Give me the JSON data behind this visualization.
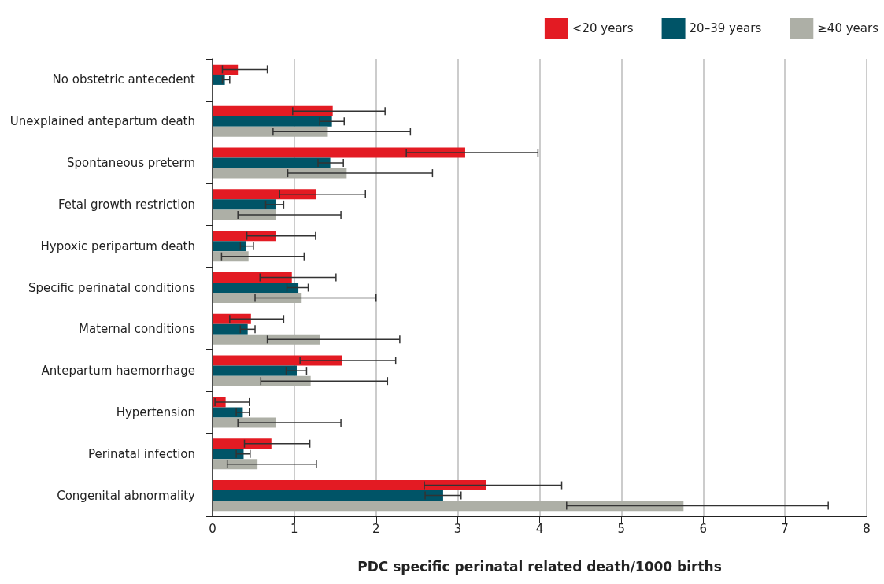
{
  "chart_data": {
    "type": "bar",
    "orientation": "horizontal",
    "xlabel": "PDC specific perinatal related death/1000 births",
    "categories": [
      "No obstetric antecedent",
      "Unexplained antepartum death",
      "Spontaneous preterm",
      "Fetal growth restriction",
      "Hypoxic peripartum death",
      "Specific perinatal conditions",
      "Maternal conditions",
      "Antepartum haemorrhage",
      "Hypertension",
      "Perinatal infection",
      "Congenital abnormality"
    ],
    "series": [
      {
        "name": "<20 years",
        "color": "#e31b23",
        "values": [
          0.31,
          1.47,
          3.09,
          1.27,
          0.77,
          0.97,
          0.47,
          1.58,
          0.16,
          0.72,
          3.35
        ],
        "errors": [
          [
            0.12,
            0.67
          ],
          [
            0.98,
            2.11
          ],
          [
            2.37,
            3.98
          ],
          [
            0.82,
            1.87
          ],
          [
            0.42,
            1.26
          ],
          [
            0.58,
            1.51
          ],
          [
            0.21,
            0.87
          ],
          [
            1.07,
            2.24
          ],
          [
            0.03,
            0.45
          ],
          [
            0.39,
            1.19
          ],
          [
            2.59,
            4.27
          ]
        ]
      },
      {
        "name": "20–39 years",
        "color": "#005467",
        "values": [
          0.15,
          1.46,
          1.44,
          0.77,
          0.41,
          1.05,
          0.43,
          1.03,
          0.37,
          0.38,
          2.82
        ],
        "errors": [
          [
            0.12,
            0.21
          ],
          [
            1.31,
            1.61
          ],
          [
            1.29,
            1.6
          ],
          [
            0.65,
            0.87
          ],
          [
            0.34,
            0.5
          ],
          [
            0.91,
            1.17
          ],
          [
            0.34,
            0.52
          ],
          [
            0.9,
            1.15
          ],
          [
            0.29,
            0.45
          ],
          [
            0.29,
            0.46
          ],
          [
            2.6,
            3.04
          ]
        ]
      },
      {
        "name": "≥40 years",
        "color": "#adafa6",
        "values": [
          0,
          1.41,
          1.64,
          0.77,
          0.44,
          1.09,
          1.31,
          1.2,
          0.77,
          0.55,
          5.76
        ],
        "errors": [
          null,
          [
            0.74,
            2.42
          ],
          [
            0.92,
            2.69
          ],
          [
            0.31,
            1.57
          ],
          [
            0.11,
            1.12
          ],
          [
            0.52,
            2.0
          ],
          [
            0.67,
            2.29
          ],
          [
            0.59,
            2.14
          ],
          [
            0.31,
            1.57
          ],
          [
            0.18,
            1.27
          ],
          [
            4.33,
            7.53
          ]
        ]
      }
    ],
    "xlim": [
      0,
      8
    ],
    "xticks": [
      0,
      1,
      2,
      3,
      4,
      5,
      6,
      7,
      8
    ],
    "grid": "x",
    "legend": "top right"
  }
}
